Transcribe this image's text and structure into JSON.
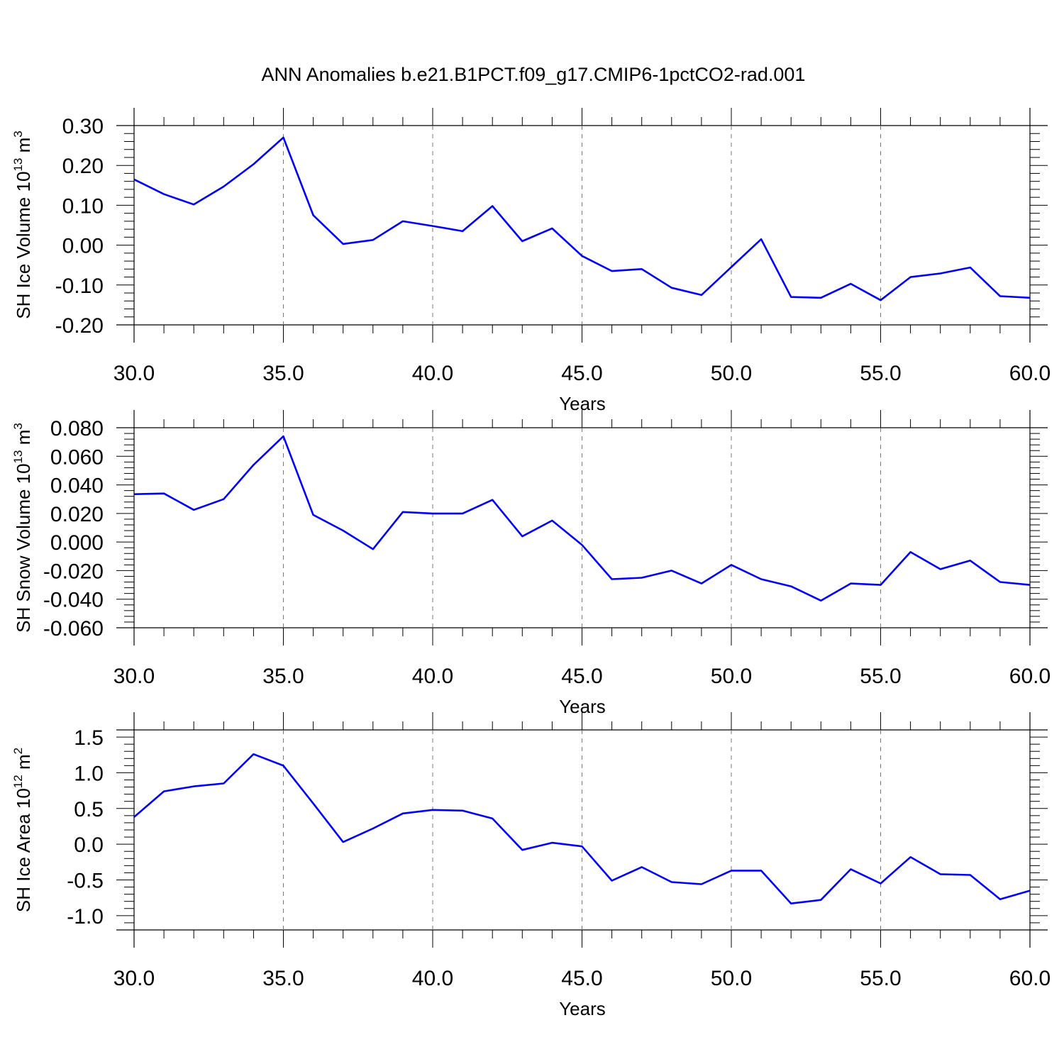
{
  "title": "ANN Anomalies b.e21.B1PCT.f09_g17.CMIP6-1pctCO2-rad.001",
  "chart_data": [
    {
      "type": "line",
      "title": "ANN Anomalies b.e21.B1PCT.f09_g17.CMIP6-1pctCO2-rad.001",
      "xlabel": "Years",
      "ylabel": {
        "base": "SH Ice Volume 10",
        "exp": "13",
        "unit": " m",
        "unit_exp": "3"
      },
      "xlim": [
        30,
        60
      ],
      "ylim": [
        -0.2,
        0.3
      ],
      "xticks": [
        "30.0",
        "35.0",
        "40.0",
        "45.0",
        "50.0",
        "55.0",
        "60.0"
      ],
      "yticks": [
        "-0.20",
        "-0.10",
        "0.00",
        "0.10",
        "0.20",
        "0.30"
      ],
      "grid": "dashed vertical at major x ticks",
      "series": [
        {
          "color": "#0000ff",
          "x": [
            30,
            31,
            32,
            33,
            34,
            35,
            36,
            37,
            38,
            39,
            40,
            41,
            42,
            43,
            44,
            45,
            46,
            47,
            48,
            49,
            50,
            51,
            52,
            53,
            54,
            55,
            56,
            57,
            58,
            59,
            60
          ],
          "values": [
            0.165,
            0.128,
            0.102,
            0.147,
            0.203,
            0.27,
            0.075,
            0.003,
            0.013,
            0.06,
            0.048,
            0.035,
            0.098,
            0.01,
            0.042,
            -0.027,
            -0.065,
            -0.06,
            -0.107,
            -0.125,
            -0.055,
            0.015,
            -0.13,
            -0.132,
            -0.097,
            -0.138,
            -0.08,
            -0.071,
            -0.056,
            -0.128,
            -0.132
          ]
        }
      ]
    },
    {
      "type": "line",
      "xlabel": "Years",
      "ylabel": {
        "base": "SH Snow Volume 10",
        "exp": "13",
        "unit": " m",
        "unit_exp": "3"
      },
      "xlim": [
        30,
        60
      ],
      "ylim": [
        -0.06,
        0.08
      ],
      "xticks": [
        "30.0",
        "35.0",
        "40.0",
        "45.0",
        "50.0",
        "55.0",
        "60.0"
      ],
      "yticks": [
        "-0.060",
        "-0.040",
        "-0.020",
        "0.000",
        "0.020",
        "0.040",
        "0.060",
        "0.080"
      ],
      "grid": "dashed vertical at major x ticks",
      "series": [
        {
          "color": "#0000ff",
          "x": [
            30,
            31,
            32,
            33,
            34,
            35,
            36,
            37,
            38,
            39,
            40,
            41,
            42,
            43,
            44,
            45,
            46,
            47,
            48,
            49,
            50,
            51,
            52,
            53,
            54,
            55,
            56,
            57,
            58,
            59,
            60
          ],
          "values": [
            0.0335,
            0.034,
            0.0225,
            0.03,
            0.054,
            0.074,
            0.019,
            0.008,
            -0.005,
            0.021,
            0.02,
            0.02,
            0.0295,
            0.004,
            0.015,
            -0.002,
            -0.026,
            -0.025,
            -0.02,
            -0.029,
            -0.016,
            -0.026,
            -0.031,
            -0.041,
            -0.029,
            -0.03,
            -0.007,
            -0.019,
            -0.013,
            -0.028,
            -0.03
          ]
        }
      ]
    },
    {
      "type": "line",
      "xlabel": "Years",
      "ylabel": {
        "base": "SH Ice Area 10",
        "exp": "12",
        "unit": " m",
        "unit_exp": "2"
      },
      "xlim": [
        30,
        60
      ],
      "ylim": [
        -1.2,
        1.6
      ],
      "xticks": [
        "30.0",
        "35.0",
        "40.0",
        "45.0",
        "50.0",
        "55.0",
        "60.0"
      ],
      "yticks": [
        "-1.0",
        "-0.5",
        "0.0",
        "0.5",
        "1.0",
        "1.5"
      ],
      "grid": "dashed vertical at major x ticks",
      "series": [
        {
          "color": "#0000ff",
          "x": [
            30,
            31,
            32,
            33,
            34,
            35,
            36,
            37,
            38,
            39,
            40,
            41,
            42,
            43,
            44,
            45,
            46,
            47,
            48,
            49,
            50,
            51,
            52,
            53,
            54,
            55,
            56,
            57,
            58,
            59,
            60
          ],
          "values": [
            0.38,
            0.74,
            0.81,
            0.85,
            1.26,
            1.1,
            0.57,
            0.03,
            0.22,
            0.43,
            0.48,
            0.47,
            0.36,
            -0.08,
            0.02,
            -0.03,
            -0.51,
            -0.32,
            -0.53,
            -0.56,
            -0.37,
            -0.37,
            -0.83,
            -0.78,
            -0.35,
            -0.55,
            -0.18,
            -0.42,
            -0.43,
            -0.77,
            -0.65
          ]
        }
      ]
    }
  ]
}
